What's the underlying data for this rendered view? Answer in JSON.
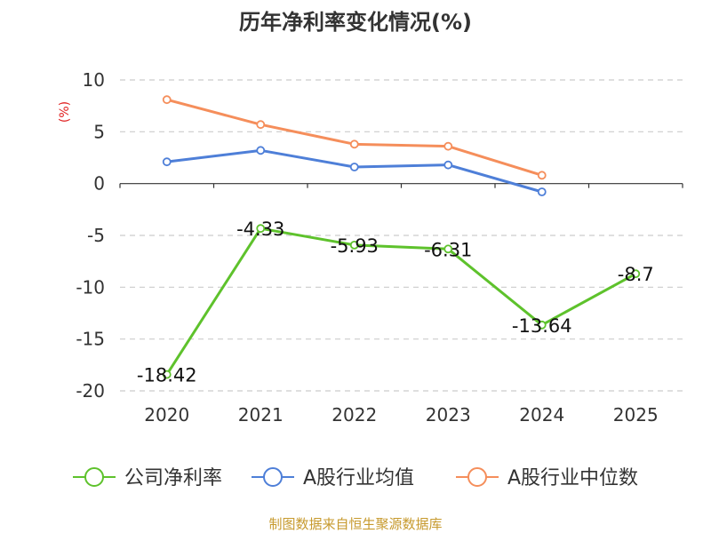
{
  "chart_data": {
    "type": "line",
    "title": "历年净利率变化情况(%)",
    "ylabel": "(%)",
    "categories": [
      "2020",
      "2021",
      "2022",
      "2023",
      "2024",
      "2025"
    ],
    "ylim": [
      -20,
      10
    ],
    "yticks": [
      10,
      5,
      0,
      -5,
      -10,
      -15,
      -20
    ],
    "grid": true,
    "legend_position": "bottom",
    "series": [
      {
        "name": "公司净利率",
        "color": "#5ec22c",
        "values": [
          -18.42,
          -4.33,
          -5.93,
          -6.31,
          -13.64,
          -8.7
        ],
        "labels": [
          "-18.42",
          "-4.33",
          "-5.93",
          "-6.31",
          "-13.64",
          "-8.7"
        ]
      },
      {
        "name": "A股行业均值",
        "color": "#4e7fd8",
        "values": [
          2.1,
          3.2,
          1.6,
          1.8,
          -0.8,
          null
        ]
      },
      {
        "name": "A股行业中位数",
        "color": "#f58e5b",
        "values": [
          8.1,
          5.7,
          3.8,
          3.6,
          0.8,
          null
        ]
      }
    ]
  },
  "source": "制图数据来自恒生聚源数据库",
  "colors": {
    "title": "#333333",
    "axis": "#333333",
    "grid": "#cccccc",
    "ylabel": "#e02020",
    "source": "#c79a2e"
  }
}
